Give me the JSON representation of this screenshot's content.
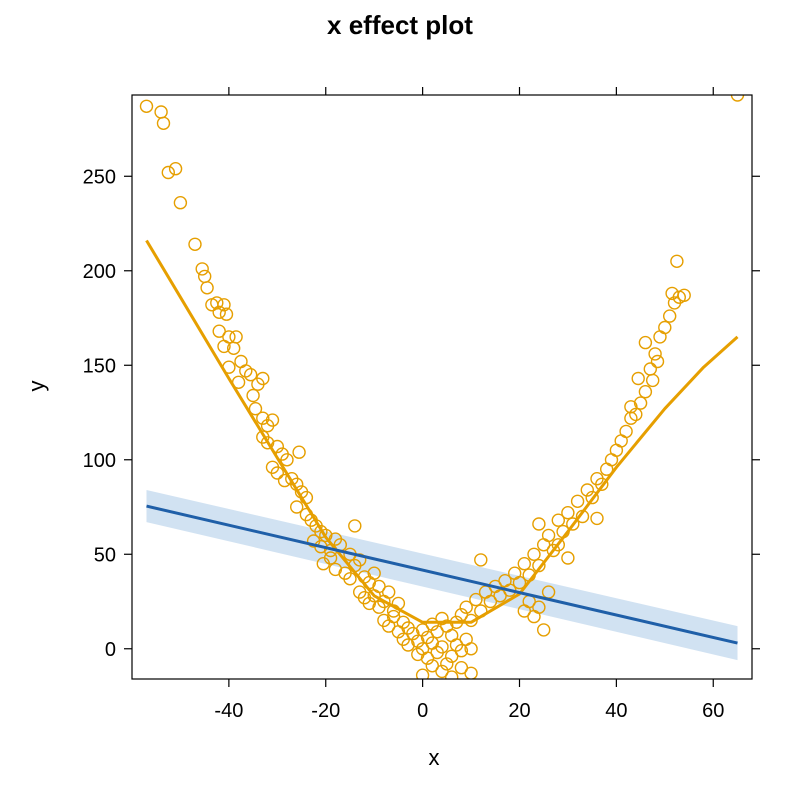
{
  "chart_data": {
    "type": "scatter",
    "title": "x effect plot",
    "xlabel": "x",
    "ylabel": "y",
    "xlim": [
      -60,
      68
    ],
    "ylim": [
      -16,
      293
    ],
    "x_ticks": [
      -40,
      -20,
      0,
      20,
      40,
      60
    ],
    "y_ticks": [
      0,
      50,
      100,
      150,
      200,
      250
    ],
    "grid": false,
    "colors": {
      "points": "#E69F00",
      "smooth": "#E69F00",
      "fit": "#1f5fa8",
      "band": "#c6dbef",
      "frame": "#000000"
    },
    "series": [
      {
        "type": "scatter",
        "marker": "open-circle",
        "values": [
          [
            -57,
            287
          ],
          [
            -54,
            284
          ],
          [
            -53.5,
            278
          ],
          [
            -52.5,
            252
          ],
          [
            -51,
            254
          ],
          [
            -50,
            236
          ],
          [
            -47,
            214
          ],
          [
            -45.5,
            201
          ],
          [
            -45,
            197
          ],
          [
            -44.5,
            191
          ],
          [
            -43.5,
            182
          ],
          [
            -42.5,
            183
          ],
          [
            -42,
            178
          ],
          [
            -41,
            182
          ],
          [
            -40.5,
            177
          ],
          [
            -42,
            168
          ],
          [
            -41,
            160
          ],
          [
            -40,
            165
          ],
          [
            -39,
            159
          ],
          [
            -38.5,
            165
          ],
          [
            -37.5,
            152
          ],
          [
            -40,
            149
          ],
          [
            -38,
            141
          ],
          [
            -36.5,
            147
          ],
          [
            -35.5,
            145
          ],
          [
            -34,
            140
          ],
          [
            -33,
            143
          ],
          [
            -35,
            134
          ],
          [
            -34.5,
            127
          ],
          [
            -33,
            122
          ],
          [
            -32,
            118
          ],
          [
            -31,
            121
          ],
          [
            -33,
            112
          ],
          [
            -32,
            109
          ],
          [
            -30,
            107
          ],
          [
            -29,
            103
          ],
          [
            -28,
            100
          ],
          [
            -31,
            96
          ],
          [
            -30,
            93
          ],
          [
            -28.5,
            89
          ],
          [
            -27,
            90
          ],
          [
            -26,
            87
          ],
          [
            -25.5,
            104
          ],
          [
            -25,
            83
          ],
          [
            -24,
            80
          ],
          [
            -26,
            75
          ],
          [
            -24,
            71
          ],
          [
            -23,
            68
          ],
          [
            -22,
            65
          ],
          [
            -21,
            62
          ],
          [
            -20,
            60
          ],
          [
            -22.5,
            57
          ],
          [
            -21,
            54
          ],
          [
            -19,
            52
          ],
          [
            -18,
            58
          ],
          [
            -17,
            55
          ],
          [
            -20.5,
            45
          ],
          [
            -19,
            48
          ],
          [
            -18,
            42
          ],
          [
            -15,
            50
          ],
          [
            -14,
            65
          ],
          [
            -13,
            47
          ],
          [
            -16,
            40
          ],
          [
            -15,
            37
          ],
          [
            -14,
            44
          ],
          [
            -12,
            38
          ],
          [
            -11,
            35
          ],
          [
            -10,
            40
          ],
          [
            -9,
            33
          ],
          [
            -13,
            30
          ],
          [
            -12,
            27
          ],
          [
            -11,
            24
          ],
          [
            -10,
            28
          ],
          [
            -9,
            22
          ],
          [
            -8,
            25
          ],
          [
            -7,
            30
          ],
          [
            -6,
            20
          ],
          [
            -5,
            24
          ],
          [
            -8,
            15
          ],
          [
            -7,
            12
          ],
          [
            -6,
            17
          ],
          [
            -5,
            9
          ],
          [
            -4,
            14
          ],
          [
            -3,
            11
          ],
          [
            -4,
            5
          ],
          [
            -3,
            2
          ],
          [
            -2,
            8
          ],
          [
            -1,
            4
          ],
          [
            0,
            10
          ],
          [
            1,
            6
          ],
          [
            2,
            13
          ],
          [
            3,
            9
          ],
          [
            4,
            16
          ],
          [
            5,
            12
          ],
          [
            6,
            7
          ],
          [
            7,
            14
          ],
          [
            -1,
            -3
          ],
          [
            0,
            0
          ],
          [
            1,
            -5
          ],
          [
            2,
            3
          ],
          [
            3,
            -2
          ],
          [
            4,
            1
          ],
          [
            5,
            -8
          ],
          [
            6,
            -4
          ],
          [
            7,
            2
          ],
          [
            8,
            -1
          ],
          [
            9,
            5
          ],
          [
            10,
            0
          ],
          [
            0,
            -14
          ],
          [
            2,
            -9
          ],
          [
            4,
            -12
          ],
          [
            6,
            -15
          ],
          [
            8,
            -10
          ],
          [
            10,
            -13
          ],
          [
            8,
            18
          ],
          [
            9,
            22
          ],
          [
            10,
            15
          ],
          [
            11,
            26
          ],
          [
            12,
            20
          ],
          [
            13,
            30
          ],
          [
            12,
            47
          ],
          [
            14,
            25
          ],
          [
            15,
            33
          ],
          [
            16,
            28
          ],
          [
            17,
            36
          ],
          [
            18,
            31
          ],
          [
            19,
            40
          ],
          [
            20,
            35
          ],
          [
            21,
            45
          ],
          [
            22,
            39
          ],
          [
            23,
            50
          ],
          [
            24,
            44
          ],
          [
            21,
            20
          ],
          [
            22,
            25
          ],
          [
            23,
            17
          ],
          [
            24,
            22
          ],
          [
            25,
            10
          ],
          [
            26,
            30
          ],
          [
            24,
            66
          ],
          [
            25,
            55
          ],
          [
            26,
            60
          ],
          [
            27,
            52
          ],
          [
            28,
            68
          ],
          [
            29,
            62
          ],
          [
            30,
            72
          ],
          [
            31,
            66
          ],
          [
            32,
            78
          ],
          [
            33,
            70
          ],
          [
            34,
            84
          ],
          [
            35,
            80
          ],
          [
            36,
            90
          ],
          [
            37,
            87
          ],
          [
            38,
            95
          ],
          [
            39,
            100
          ],
          [
            40,
            105
          ],
          [
            41,
            110
          ],
          [
            42,
            115
          ],
          [
            43,
            122
          ],
          [
            44,
            124
          ],
          [
            45,
            130
          ],
          [
            46,
            136
          ],
          [
            47,
            148
          ],
          [
            48,
            156
          ],
          [
            49,
            165
          ],
          [
            50,
            170
          ],
          [
            51,
            176
          ],
          [
            52,
            183
          ],
          [
            52.5,
            205
          ],
          [
            51.5,
            188
          ],
          [
            53,
            186
          ],
          [
            54,
            187
          ],
          [
            47.5,
            142
          ],
          [
            46,
            162
          ],
          [
            48.5,
            152
          ],
          [
            44.5,
            143
          ],
          [
            43,
            128
          ],
          [
            36,
            69
          ],
          [
            65,
            293
          ],
          [
            30,
            48
          ],
          [
            28,
            55
          ]
        ]
      },
      {
        "type": "line",
        "values": [
          [
            -57,
            216
          ],
          [
            -50,
            186
          ],
          [
            -40,
            143
          ],
          [
            -30,
            101
          ],
          [
            -20,
            59
          ],
          [
            -10,
            28
          ],
          [
            0,
            14
          ],
          [
            10,
            14
          ],
          [
            20,
            29
          ],
          [
            30,
            62
          ],
          [
            40,
            96
          ],
          [
            50,
            127
          ],
          [
            58,
            149
          ],
          [
            65,
            165
          ]
        ]
      },
      {
        "type": "line",
        "values": [
          [
            -57,
            75.5
          ],
          [
            65,
            3
          ]
        ],
        "band": {
          "lower": [
            [
              -57,
              67
            ],
            [
              65,
              -6
            ]
          ],
          "upper": [
            [
              -57,
              84
            ],
            [
              65,
              12
            ]
          ]
        }
      }
    ]
  }
}
